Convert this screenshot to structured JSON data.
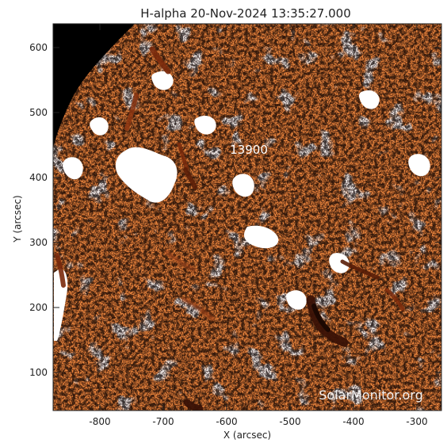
{
  "title": "H-alpha 20-Nov-2024 13:35:27.000",
  "axes": {
    "x_label": "X (arcsec)",
    "y_label": "Y (arcsec)",
    "x_ticks": [
      "-800",
      "-700",
      "-600",
      "-500",
      "-400",
      "-300"
    ],
    "y_ticks": [
      "100",
      "200",
      "300",
      "400",
      "500",
      "600"
    ]
  },
  "region_label": "13900",
  "watermark": "SolarMonitor.org",
  "colors": {
    "disk_base": "#e8792e",
    "disk_light": "#f6a25c",
    "filament": "#7a2a0c",
    "filament_dark": "#3a1206",
    "off_limb": "#000000",
    "saturated_white": "#ffffff"
  }
}
